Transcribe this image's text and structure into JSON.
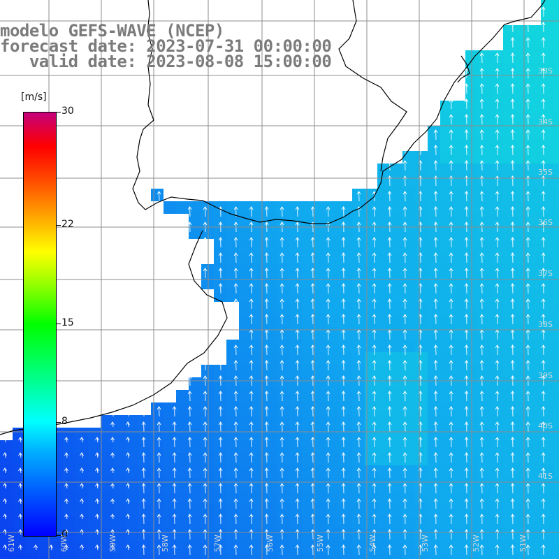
{
  "title": {
    "line1": "modelo GEFS-WAVE (NCEP)",
    "line2": "forecast date: 2023-07-31 00:00:00",
    "line3": "   valid date: 2023-08-08 15:00:00"
  },
  "colorbar": {
    "unit": "[m/s]",
    "ticks": [
      {
        "label": "30",
        "value": 30
      },
      {
        "label": "22",
        "value": 22
      },
      {
        "label": "15",
        "value": 15
      },
      {
        "label": "8",
        "value": 8
      },
      {
        "label": "0",
        "value": 0
      }
    ],
    "colors": [
      "#0000ff",
      "#00b0ff",
      "#00ffff",
      "#00ff80",
      "#00ff00",
      "#ffff00",
      "#ff5500",
      "#ff0000",
      "#c4007a"
    ]
  },
  "map": {
    "lat_labels": [
      "33S",
      "34S",
      "35S",
      "36S",
      "37S",
      "38S",
      "39S",
      "40S",
      "41S"
    ],
    "lon_labels": [
      "61W",
      "60W",
      "59W",
      "58W",
      "57W",
      "56W",
      "55W",
      "54W",
      "53W",
      "52W",
      "51W"
    ],
    "wind_direction": "from south (arrows pointing north)",
    "colors": {
      "land": "#ffffff",
      "coastline": "#000000",
      "grid": "#8c8c8c",
      "arrow": "#ffffff",
      "sea_low": "#0b3cf0",
      "sea_mid": "#10a8f0",
      "sea_high": "#12d8e0"
    }
  }
}
